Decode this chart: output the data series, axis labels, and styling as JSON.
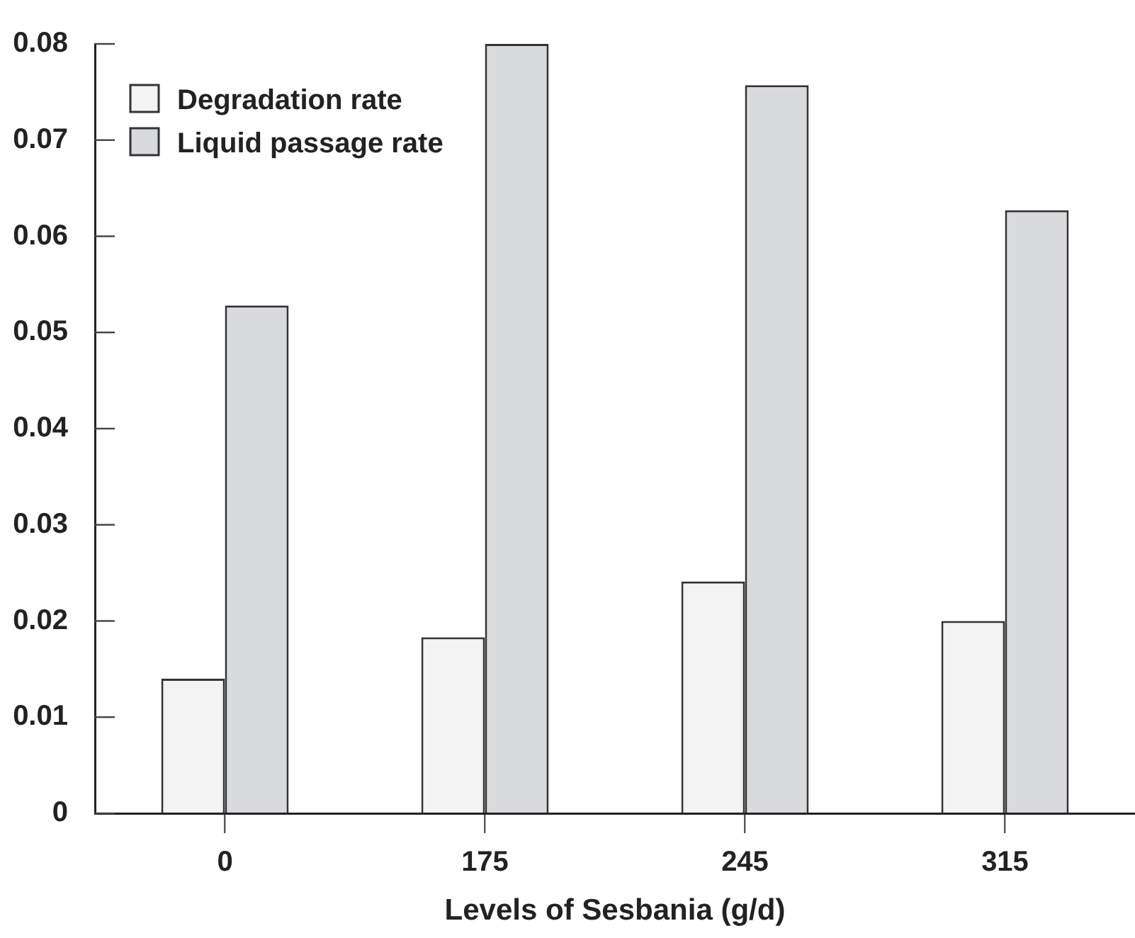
{
  "chart_data": {
    "type": "bar",
    "xlabel": "Levels of Sesbania (g/d)",
    "categories": [
      "0",
      "175",
      "245",
      "315"
    ],
    "series": [
      {
        "name": "Degradation rate",
        "color": "#f2f3f2",
        "values": [
          0.014,
          0.0183,
          0.0241,
          0.02
        ]
      },
      {
        "name": "Liquid passage rate",
        "color": "#d9dadc",
        "values": [
          0.0528,
          0.08,
          0.0757,
          0.0627
        ]
      }
    ],
    "ylim": [
      0,
      0.08
    ],
    "yticks": [
      0,
      0.01,
      0.02,
      0.03,
      0.04,
      0.05,
      0.06,
      0.07,
      0.08
    ],
    "legend": "top left",
    "grid": false
  }
}
